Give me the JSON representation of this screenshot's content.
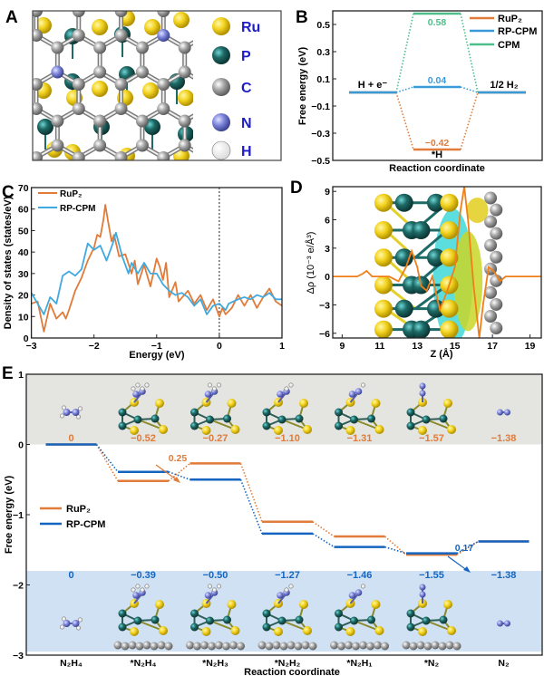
{
  "panels": {
    "a": "A",
    "b": "B",
    "c": "C",
    "d": "D",
    "e": "E"
  },
  "panel_a": {
    "legend": [
      {
        "label": "Ru",
        "color": "#f2d21e"
      },
      {
        "label": "P",
        "color": "#1e6a66"
      },
      {
        "label": "C",
        "color": "#a3a3a3"
      },
      {
        "label": "N",
        "color": "#7b84db"
      },
      {
        "label": "H",
        "color": "#ffffff"
      }
    ],
    "label_color": "#1d1dc8"
  },
  "chart_data": [
    {
      "panel": "B",
      "type": "line",
      "ylabel": "Free energy (eV)",
      "xlabel": "Reaction coordinate",
      "ylim": [
        -0.5,
        0.6
      ],
      "yticks": [
        0.5,
        0.3,
        0.1,
        -0.1,
        -0.3,
        -0.5
      ],
      "yticklabels": [
        "0.5",
        "0.3",
        "0.1",
        "−0.1",
        "−0.3",
        "−0.5"
      ],
      "states": [
        "H + e⁻",
        "*H",
        "1/2 H₂"
      ],
      "series": [
        {
          "name": "RuP₂",
          "color": "#e07b39",
          "values": [
            0,
            -0.42,
            0
          ],
          "value_label": "−0.42"
        },
        {
          "name": "RP-CPM",
          "color": "#3a9ad9",
          "values": [
            0,
            0.04,
            0
          ],
          "value_label": "0.04"
        },
        {
          "name": "CPM",
          "color": "#4cbf8a",
          "values": [
            0,
            0.58,
            0
          ],
          "value_label": "0.58"
        }
      ],
      "legend": "top-right"
    },
    {
      "panel": "C",
      "type": "line",
      "ylabel": "Density of states (states/eV)",
      "xlabel": "Energy (eV)",
      "xlim": [
        -3,
        1
      ],
      "ylim": [
        0,
        70
      ],
      "xticks": [
        -3,
        -2,
        -1,
        0,
        1
      ],
      "xticklabels": [
        "−3",
        "−2",
        "−1",
        "0",
        "1"
      ],
      "yticks": [
        0,
        10,
        20,
        30,
        40,
        50,
        60,
        70
      ],
      "yticklabels": [
        "0",
        "10",
        "20",
        "30",
        "40",
        "50",
        "60",
        "70"
      ],
      "fermi_level": 0,
      "legend": "top-left",
      "series": [
        {
          "name": "RuP₂",
          "color": "#e07b39",
          "x": [
            -3,
            -2.9,
            -2.8,
            -2.7,
            -2.6,
            -2.5,
            -2.45,
            -2.4,
            -2.3,
            -2.2,
            -2.1,
            -2.0,
            -1.95,
            -1.9,
            -1.85,
            -1.82,
            -1.78,
            -1.72,
            -1.68,
            -1.6,
            -1.5,
            -1.4,
            -1.35,
            -1.3,
            -1.2,
            -1.1,
            -1.0,
            -0.95,
            -0.9,
            -0.85,
            -0.8,
            -0.7,
            -0.65,
            -0.5,
            -0.4,
            -0.3,
            -0.2,
            -0.1,
            0,
            0.05,
            0.1,
            0.2,
            0.3,
            0.4,
            0.5,
            0.6,
            0.7,
            0.8,
            0.9,
            1
          ],
          "y": [
            16,
            17,
            3,
            16,
            9,
            12,
            9,
            13,
            22,
            28,
            36,
            42,
            48,
            47,
            55,
            62,
            55,
            45,
            48,
            38,
            39,
            30,
            36,
            25,
            34,
            24,
            37,
            33,
            27,
            35,
            19,
            26,
            17,
            22,
            16,
            20,
            13,
            18,
            10,
            14,
            11,
            14,
            20,
            15,
            20,
            14,
            19,
            23,
            17,
            15
          ]
        },
        {
          "name": "RP-CPM",
          "color": "#3fa9e0",
          "x": [
            -3,
            -2.9,
            -2.8,
            -2.7,
            -2.6,
            -2.5,
            -2.4,
            -2.3,
            -2.2,
            -2.1,
            -2.0,
            -1.9,
            -1.8,
            -1.7,
            -1.65,
            -1.55,
            -1.45,
            -1.4,
            -1.3,
            -1.2,
            -1.1,
            -1.0,
            -0.9,
            -0.8,
            -0.7,
            -0.6,
            -0.5,
            -0.4,
            -0.3,
            -0.2,
            -0.1,
            0,
            0.1,
            0.15,
            0.3,
            0.4,
            0.5,
            0.6,
            0.7,
            0.8,
            0.9,
            1
          ],
          "y": [
            21,
            16,
            11,
            19,
            16,
            29,
            31,
            29,
            32,
            44,
            41,
            43,
            36,
            44,
            49,
            38,
            30,
            35,
            30,
            35,
            30,
            30,
            25,
            22,
            20,
            21,
            19,
            15,
            18,
            11,
            15,
            16,
            13,
            16,
            18,
            19,
            18,
            20,
            19,
            21,
            18,
            18
          ]
        }
      ]
    },
    {
      "panel": "D",
      "type": "line",
      "ylabel": "Δρ (10⁻³ e/Å³)",
      "xlabel": "Z (Å)",
      "xlim": [
        8.5,
        19.6
      ],
      "ylim": [
        -6.5,
        9.5
      ],
      "xticks": [
        9,
        11,
        13,
        15,
        17,
        19
      ],
      "xticklabels": [
        "9",
        "11",
        "13",
        "15",
        "17",
        "19"
      ],
      "yticks": [
        9,
        6,
        3,
        0,
        -3,
        -6
      ],
      "yticklabels": [
        "9",
        "6",
        "3",
        "0",
        "−3",
        "−6"
      ],
      "series": [
        {
          "color": "#f07f1a",
          "x": [
            8.5,
            9.8,
            10.1,
            10.3,
            10.6,
            11.5,
            12.0,
            12.4,
            12.7,
            13.0,
            13.2,
            13.5,
            13.8,
            14.2,
            14.6,
            15.0,
            15.3,
            15.5,
            15.7,
            16.0,
            16.3,
            16.5,
            16.8,
            17.1,
            17.4,
            17.7,
            19.6
          ],
          "y": [
            0,
            0,
            0.3,
            0.6,
            0,
            0,
            -0.5,
            1,
            2.7,
            1,
            -1,
            -1.5,
            0,
            -3.5,
            -1.5,
            1,
            7,
            9.5,
            6,
            -1,
            -6.5,
            -3,
            1,
            0.5,
            -0.5,
            0,
            0
          ]
        }
      ]
    },
    {
      "panel": "E",
      "type": "line",
      "ylabel": "Free energy (eV)",
      "xlabel": "Reaction coordinate",
      "ylim": [
        -3,
        1
      ],
      "yticks": [
        1,
        0,
        -1,
        -2,
        -3
      ],
      "yticklabels": [
        "1",
        "0",
        "−1",
        "−2",
        "−3"
      ],
      "categories": [
        "N₂H₄",
        "*N₂H₄",
        "*N₂H₃",
        "*N₂H₂",
        "*N₂H₁",
        "*N₂",
        "N₂"
      ],
      "legend": "left",
      "series": [
        {
          "name": "RuP₂",
          "color": "#e07b39",
          "values": [
            0,
            -0.52,
            -0.27,
            -1.1,
            -1.31,
            -1.57,
            -1.38
          ],
          "labels": [
            "0",
            "−0.52",
            "−0.27",
            "−1.10",
            "−1.31",
            "−1.57",
            "−1.38"
          ]
        },
        {
          "name": "RP-CPM",
          "color": "#1565c0",
          "values": [
            0,
            -0.39,
            -0.5,
            -1.27,
            -1.46,
            -1.55,
            -1.38
          ],
          "labels": [
            "0",
            "−0.39",
            "−0.50",
            "−1.27",
            "−1.46",
            "−1.55",
            "−1.38"
          ]
        }
      ],
      "annotations": [
        {
          "text": "0.25",
          "color": "#e07b39",
          "series": "RuP₂"
        },
        {
          "text": "0.17",
          "color": "#1565c0",
          "series": "RP-CPM"
        }
      ],
      "band_colors": {
        "top": "#e4e4e1",
        "bottom": "#cfe1f3"
      }
    }
  ]
}
